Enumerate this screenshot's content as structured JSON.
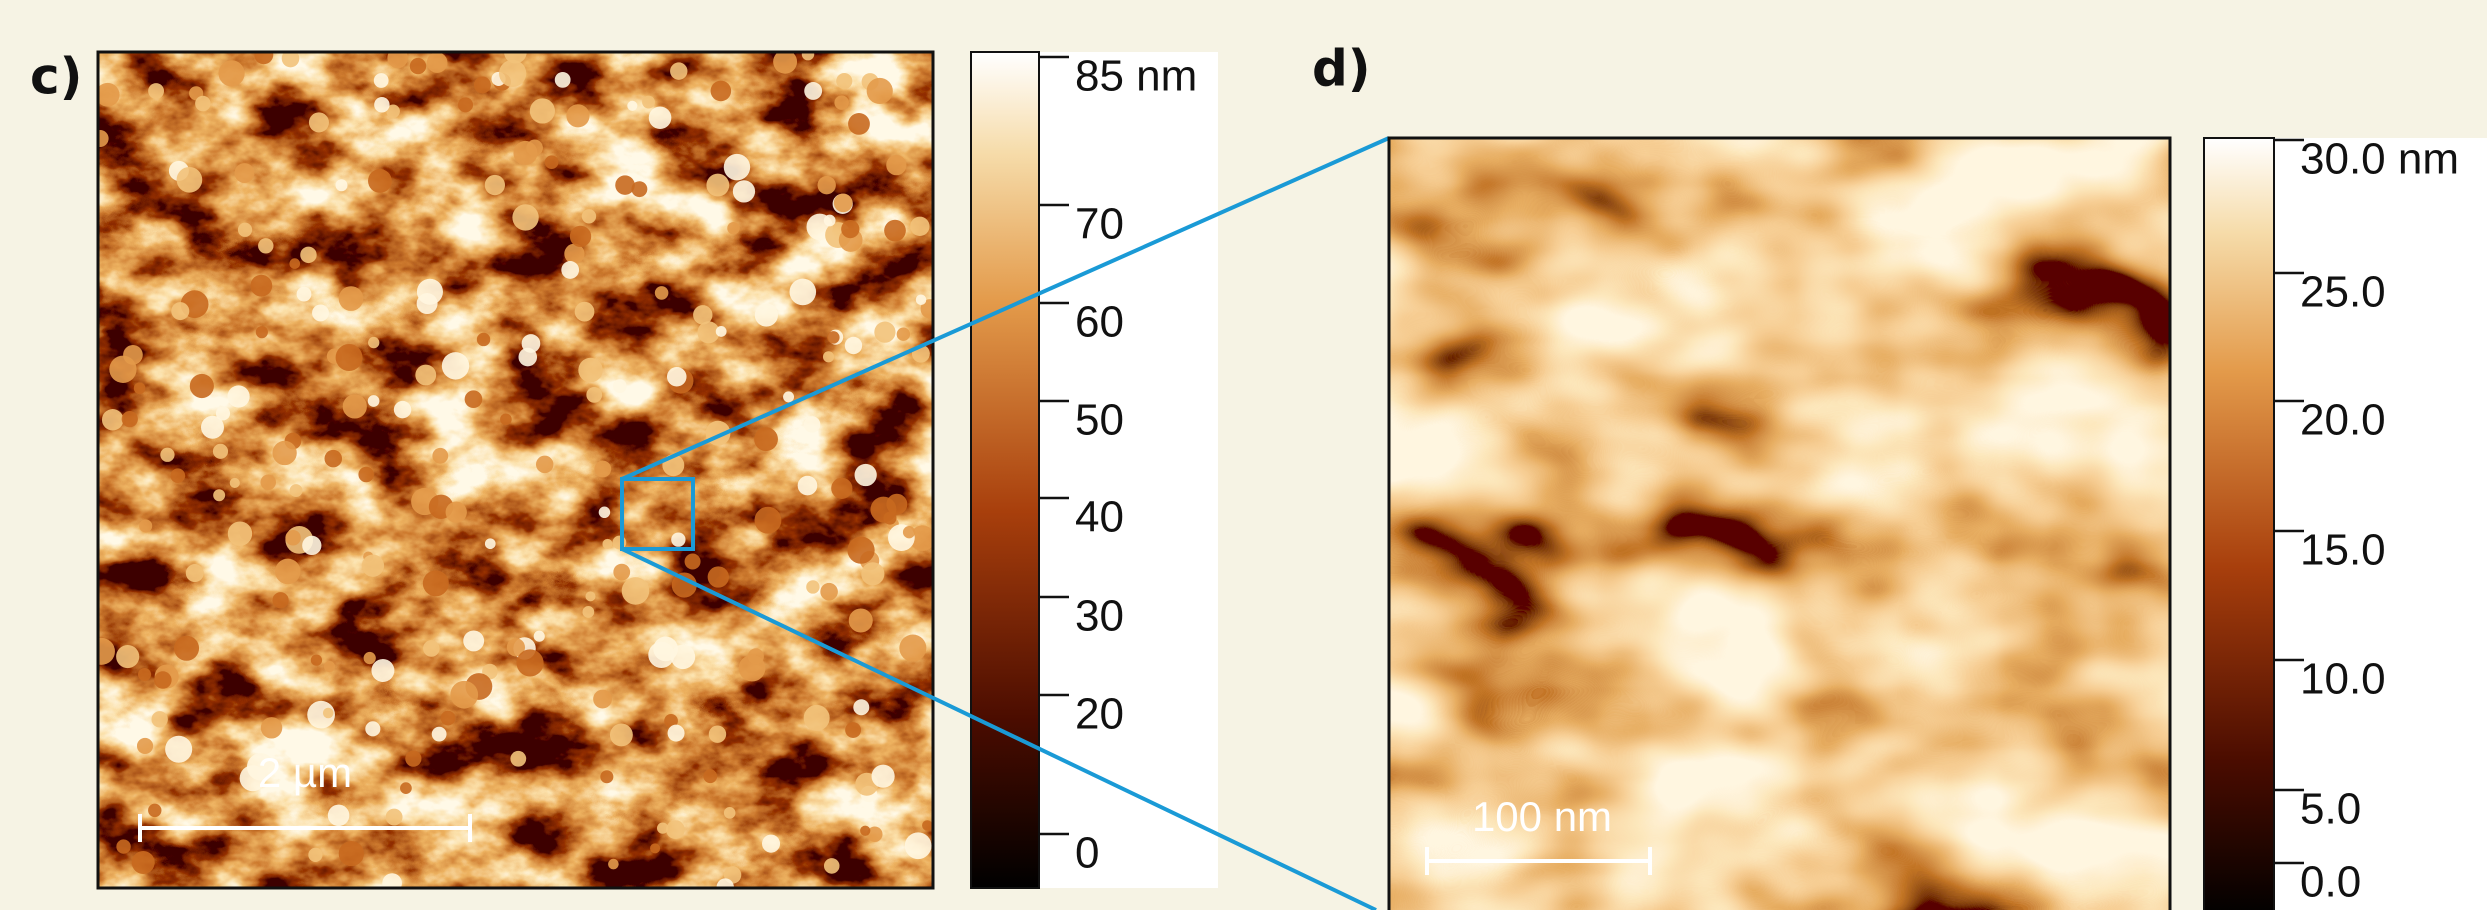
{
  "panel_c": {
    "label": "c)",
    "scale_bar": "2 µm",
    "colorbar": {
      "top_label": "85 nm",
      "ticks": [
        "70",
        "60",
        "50",
        "40",
        "30",
        "20",
        "0"
      ]
    }
  },
  "panel_d": {
    "label": "d)",
    "scale_bar": "100 nm",
    "colorbar": {
      "top_label": "30.0 nm",
      "ticks": [
        "25.0",
        "20.0",
        "15.0",
        "10.0",
        "5.0",
        "0.0"
      ]
    }
  }
}
